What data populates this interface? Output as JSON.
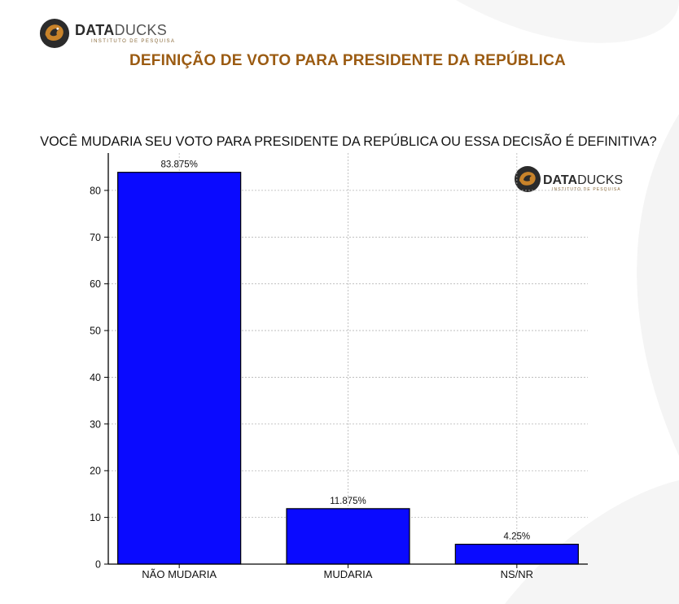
{
  "brand": {
    "name_bold": "DATA",
    "name_light": "DUCKS",
    "tagline": "INSTITUTO DE PESQUISA"
  },
  "page_title": "DEFINIÇÃO DE VOTO PARA PRESIDENTE DA REPÚBLICA",
  "chart_data": {
    "type": "bar",
    "title": "VOCÊ MUDARIA SEU VOTO PARA PRESIDENTE DA REPÚBLICA OU ESSA DECISÃO É DEFINITIVA?",
    "categories": [
      "NÃO MUDARIA",
      "MUDARIA",
      "NS/NR"
    ],
    "values": [
      83.875,
      11.875,
      4.25
    ],
    "data_labels": [
      "83.875%",
      "11.875%",
      "4.25%"
    ],
    "xlabel": "",
    "ylabel": "",
    "ylim": [
      0,
      88
    ],
    "yticks": [
      0,
      10,
      20,
      30,
      40,
      50,
      60,
      70,
      80
    ],
    "grid": true,
    "bar_color": "#0a0aff",
    "watermark": {
      "name_bold": "DATA",
      "name_light": "DUCKS",
      "tagline": "INSTITUTO DE PESQUISA"
    }
  },
  "colors": {
    "title": "#9b5b12",
    "brand_dark": "#2b2b2b",
    "brand_accent": "#b07020"
  }
}
